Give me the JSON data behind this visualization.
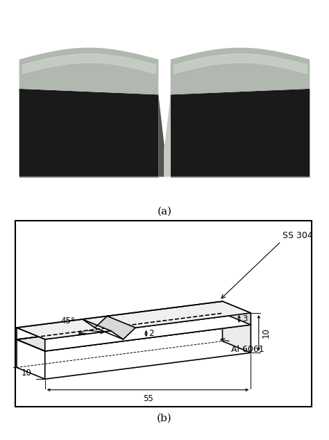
{
  "fig_width": 4.74,
  "fig_height": 6.34,
  "dpi": 100,
  "label_a": "(a)",
  "label_b": "(b)",
  "bg_color": "#ffffff",
  "photo_bg": "#9B0000",
  "ss304_label": "SS 304",
  "al6061_label": "Al 6061",
  "dim_55": "55",
  "dim_10_bottom": "10",
  "dim_10_right": "10",
  "dim_3": "3",
  "dim_2": "2",
  "dim_45": "45°",
  "metal_dark": "#1a1a1a",
  "metal_mid": "#3a3a3a",
  "metal_bright": "#b0b8b0",
  "metal_highlight": "#d0d8d0",
  "notch_shine": "#c8c8c0"
}
